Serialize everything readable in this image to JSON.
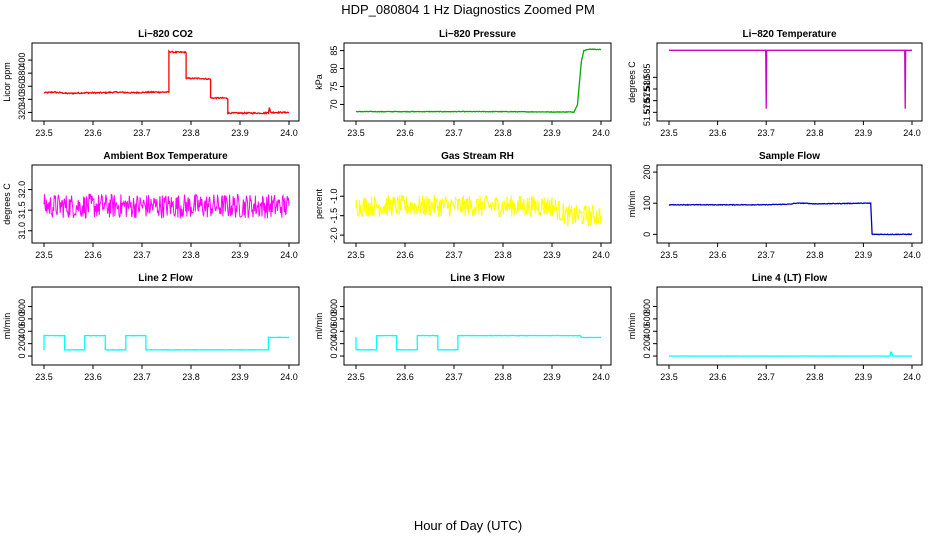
{
  "figure": {
    "title": "HDP_080804  1 Hz Diagnostics Zoomed PM",
    "xlabel": "Hour of Day (UTC)"
  },
  "chart_data": [
    {
      "id": "co2",
      "type": "line",
      "title": "Li−820 CO2",
      "ylabel": "Licor ppm",
      "color": "#ff0000",
      "xlim": [
        23.5,
        24.0
      ],
      "ylim": [
        313,
        420
      ],
      "yticks": [
        320,
        340,
        360,
        380,
        400
      ],
      "xticks": [
        23.5,
        23.6,
        23.7,
        23.8,
        23.9,
        24.0
      ],
      "series": [
        {
          "name": "CO2",
          "x": [
            23.5,
            23.52,
            23.55,
            23.58,
            23.62,
            23.65,
            23.68,
            23.72,
            23.755,
            23.755,
            23.765,
            23.79,
            23.79,
            23.81,
            23.82,
            23.835,
            23.84,
            23.84,
            23.87,
            23.875,
            23.875,
            23.95,
            23.958,
            23.96,
            23.962,
            23.97,
            24.0
          ],
          "y": [
            350,
            351,
            349,
            350,
            350,
            351,
            350,
            351,
            351,
            413,
            412,
            412,
            372,
            372,
            372,
            371,
            371,
            342,
            342,
            341,
            319,
            319,
            320,
            328,
            320,
            320,
            320
          ]
        }
      ],
      "noise": 1
    },
    {
      "id": "pressure",
      "type": "line",
      "title": "Li−820 Pressure",
      "ylabel": "kPa",
      "color": "#00aa00",
      "xlim": [
        23.5,
        24.0
      ],
      "ylim": [
        66.5,
        86
      ],
      "yticks": [
        70,
        75,
        80,
        85
      ],
      "xticks": [
        23.5,
        23.6,
        23.7,
        23.8,
        23.9,
        24.0
      ],
      "series": [
        {
          "name": "Pressure",
          "x": [
            23.5,
            23.6,
            23.7,
            23.8,
            23.9,
            23.945,
            23.952,
            23.956,
            23.96,
            23.965,
            23.975,
            24.0
          ],
          "y": [
            68.0,
            68.0,
            68.0,
            68.0,
            67.9,
            67.9,
            70,
            76,
            82,
            85,
            85.4,
            85.3
          ]
        }
      ],
      "noise": 0.08
    },
    {
      "id": "temp",
      "type": "line",
      "title": "Li−820 Temperature",
      "ylabel": "degrees C",
      "color": "#cc00cc",
      "xlim": [
        23.5,
        24.0
      ],
      "ylim": [
        51.568,
        51.598
      ],
      "yticks": [
        51.57,
        51.575,
        51.58,
        51.585
      ],
      "xticks": [
        23.5,
        23.6,
        23.7,
        23.8,
        23.9,
        24.0
      ],
      "series": [
        {
          "name": "Temperature",
          "x": [
            23.5,
            23.699,
            23.7,
            23.701,
            23.985,
            23.986,
            23.987,
            24.0
          ],
          "y": [
            51.5966,
            51.5966,
            51.5715,
            51.5966,
            51.5966,
            51.5715,
            51.5966,
            51.5966
          ]
        }
      ],
      "noise": 0
    },
    {
      "id": "ambient",
      "type": "line",
      "title": "Ambient Box Temperature",
      "ylabel": "degrees C",
      "color": "#ff00ff",
      "xlim": [
        23.5,
        24.0
      ],
      "ylim": [
        30.8,
        32.5
      ],
      "yticks": [
        31.0,
        31.5,
        32.0
      ],
      "xticks": [
        23.5,
        23.6,
        23.7,
        23.8,
        23.9,
        24.0
      ],
      "series": [
        {
          "name": "Ambient",
          "x": [
            23.5,
            24.0
          ],
          "y": [
            31.6,
            31.6
          ]
        }
      ],
      "noise": 0.3
    },
    {
      "id": "rh",
      "type": "line",
      "title": "Gas Stream RH",
      "ylabel": "percent",
      "color": "#ffff00",
      "xlim": [
        23.5,
        24.0
      ],
      "ylim": [
        -2.1,
        -0.3
      ],
      "yticks": [
        -2.0,
        -1.5,
        -1.0
      ],
      "xticks": [
        23.5,
        23.6,
        23.7,
        23.8,
        23.9,
        24.0
      ],
      "series": [
        {
          "name": "RH",
          "x": [
            23.5,
            23.9,
            23.93,
            24.0
          ],
          "y": [
            -1.25,
            -1.25,
            -1.5,
            -1.5
          ]
        }
      ],
      "noise": 0.28
    },
    {
      "id": "sample",
      "type": "line",
      "title": "Sample Flow",
      "ylabel": "ml/min",
      "color": "#0000cc",
      "xlim": [
        23.5,
        24.0
      ],
      "ylim": [
        -15,
        210
      ],
      "yticks": [
        0,
        100,
        200
      ],
      "xticks": [
        23.5,
        23.6,
        23.7,
        23.8,
        23.9,
        24.0
      ],
      "series": [
        {
          "name": "Sample",
          "x": [
            23.5,
            23.6,
            23.7,
            23.75,
            23.76,
            23.78,
            23.8,
            23.9,
            23.915,
            23.918,
            23.95,
            24.0
          ],
          "y": [
            95,
            95,
            95,
            97,
            100,
            100,
            98,
            100,
            100,
            0,
            0,
            0
          ]
        }
      ],
      "noise": 1
    },
    {
      "id": "line2",
      "type": "line",
      "title": "Line 2 Flow",
      "ylabel": "ml/min",
      "color": "#00ffff",
      "xlim": [
        23.5,
        24.0
      ],
      "ylim": [
        -80,
        1050
      ],
      "yticks": [
        0,
        200,
        400,
        600,
        800
      ],
      "xticks": [
        23.5,
        23.6,
        23.7,
        23.8,
        23.9,
        24.0
      ],
      "series": [
        {
          "name": "Line 2",
          "x": [
            23.5,
            23.5,
            23.542,
            23.542,
            23.583,
            23.583,
            23.625,
            23.625,
            23.667,
            23.667,
            23.708,
            23.708,
            23.958,
            23.958,
            24.0
          ],
          "y": [
            100,
            330,
            330,
            100,
            100,
            330,
            330,
            100,
            100,
            330,
            330,
            100,
            100,
            300,
            300
          ]
        }
      ],
      "noise": 3
    },
    {
      "id": "line3",
      "type": "line",
      "title": "Line 3 Flow",
      "ylabel": "ml/min",
      "color": "#00ffff",
      "xlim": [
        23.5,
        24.0
      ],
      "ylim": [
        -80,
        1050
      ],
      "yticks": [
        0,
        200,
        400,
        600,
        800
      ],
      "xticks": [
        23.5,
        23.6,
        23.7,
        23.8,
        23.9,
        24.0
      ],
      "series": [
        {
          "name": "Line 3",
          "x": [
            23.5,
            23.5,
            23.5,
            23.542,
            23.542,
            23.583,
            23.583,
            23.625,
            23.625,
            23.667,
            23.667,
            23.708,
            23.708,
            23.958,
            23.96,
            24.0
          ],
          "y": [
            300,
            100,
            100,
            100,
            330,
            330,
            100,
            100,
            330,
            330,
            100,
            100,
            330,
            330,
            300,
            300
          ]
        }
      ],
      "noise": 3
    },
    {
      "id": "line4",
      "type": "line",
      "title": "Line 4 (LT) Flow",
      "ylabel": "ml/min",
      "color": "#00ffff",
      "xlim": [
        23.5,
        24.0
      ],
      "ylim": [
        -80,
        1050
      ],
      "yticks": [
        0,
        200,
        400,
        600,
        800
      ],
      "xticks": [
        23.5,
        23.6,
        23.7,
        23.8,
        23.9,
        24.0
      ],
      "series": [
        {
          "name": "Line 4",
          "x": [
            23.5,
            23.955,
            23.956,
            23.958,
            23.96,
            24.0
          ],
          "y": [
            0,
            0,
            60,
            60,
            0,
            0
          ]
        }
      ],
      "noise": 1
    }
  ]
}
